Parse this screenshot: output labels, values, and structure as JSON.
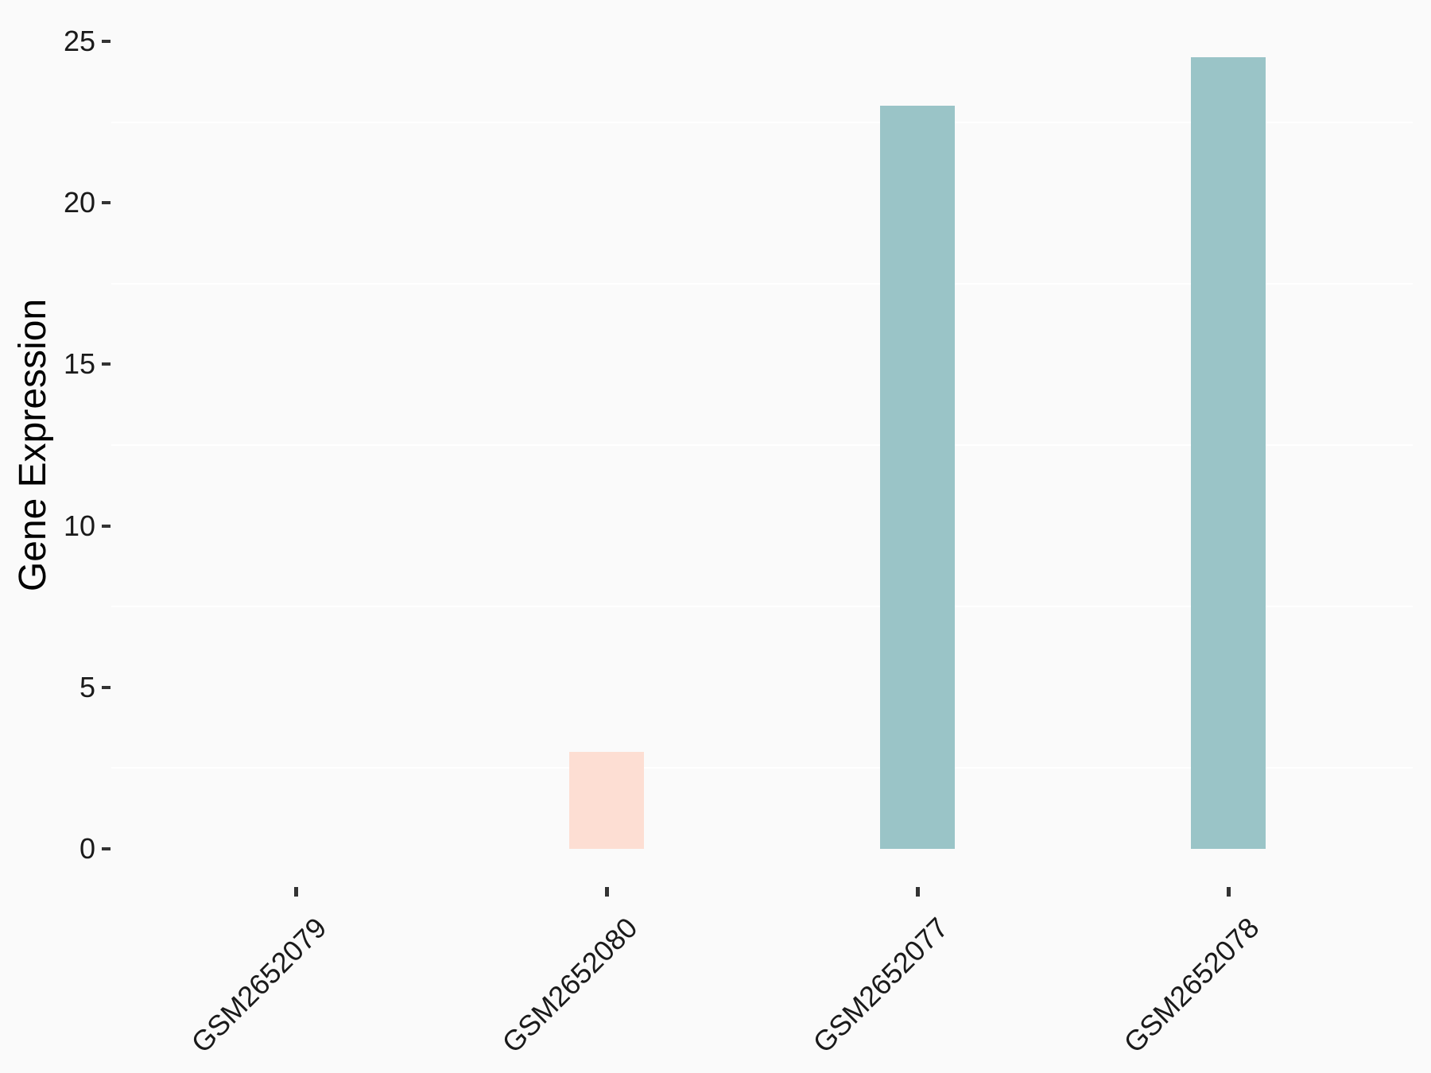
{
  "chart_data": {
    "type": "bar",
    "title": "",
    "xlabel": "",
    "ylabel": "Gene Expression",
    "categories": [
      "GSM2652079",
      "GSM2652080",
      "GSM2652077",
      "GSM2652078"
    ],
    "values": [
      0,
      3,
      23,
      24.5
    ],
    "bar_colors": [
      "#fdded3",
      "#fdded3",
      "#9ac4c7",
      "#9ac4c7"
    ],
    "yticks": [
      0,
      5,
      10,
      15,
      20,
      25
    ],
    "ylim": [
      0,
      25
    ],
    "grid": "minor-gridlines-only",
    "legend_position": "none",
    "x_tick_label_rotation_deg": 45
  },
  "colors": {
    "background": "#fafafa",
    "gridline": "#ffffff",
    "tick_mark": "#333333",
    "tick_label": "#1a1a1a",
    "axis_title": "#000000"
  }
}
